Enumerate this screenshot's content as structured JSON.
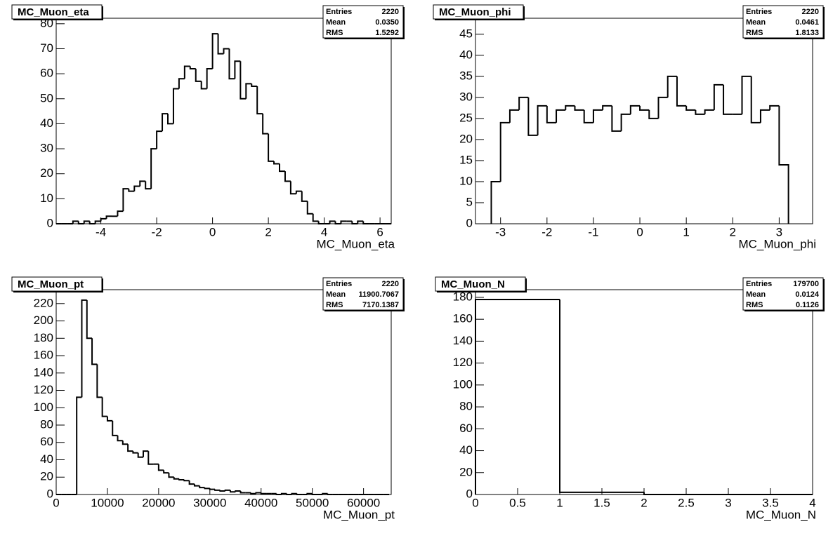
{
  "chart_data": [
    {
      "type": "histogram",
      "title": "MC_Muon_eta",
      "x_label": "MC_Muon_eta",
      "stats": [
        {
          "label": "Entries",
          "value": "2220"
        },
        {
          "label": "Mean",
          "value": "0.0350"
        },
        {
          "label": "RMS",
          "value": "1.5292"
        }
      ],
      "bins": [
        -5.6,
        -5.4,
        -5.2,
        -5.0,
        -4.8,
        -4.6,
        -4.4,
        -4.2,
        -4.0,
        -3.8,
        -3.6,
        -3.4,
        -3.2,
        -3.0,
        -2.8,
        -2.6,
        -2.4,
        -2.2,
        -2.0,
        -1.8,
        -1.6,
        -1.4,
        -1.2,
        -1.0,
        -0.8,
        -0.6,
        -0.4,
        -0.2,
        0.0,
        0.2,
        0.4,
        0.6,
        0.8,
        1.0,
        1.2,
        1.4,
        1.6,
        1.8,
        2.0,
        2.2,
        2.4,
        2.6,
        2.8,
        3.0,
        3.2,
        3.4,
        3.6,
        3.8,
        4.0,
        4.2,
        4.4,
        4.6,
        4.8,
        5.0,
        5.2,
        5.4,
        5.6,
        5.8,
        6.0,
        6.2,
        6.4
      ],
      "values": [
        0,
        0,
        0,
        1,
        0,
        1,
        0,
        1,
        2,
        3,
        3,
        5,
        14,
        13,
        15,
        17,
        14,
        30,
        37,
        44,
        40,
        54,
        58,
        63,
        62,
        57,
        54,
        62,
        76,
        68,
        70,
        58,
        65,
        50,
        56,
        55,
        44,
        36,
        25,
        24,
        21,
        17,
        12,
        13,
        9,
        4,
        1,
        0,
        0,
        1,
        0,
        1,
        1,
        0,
        1,
        0,
        0,
        0,
        0,
        0
      ],
      "color": "#000000",
      "xlim": [
        -5.6,
        6.4
      ],
      "ylim": [
        0,
        82.2
      ],
      "xticks": [
        -4,
        -2,
        0,
        2,
        4,
        6
      ],
      "yticks": [
        0,
        10,
        20,
        30,
        40,
        50,
        60,
        70,
        80
      ]
    },
    {
      "type": "histogram",
      "title": "MC_Muon_phi",
      "x_label": "MC_Muon_phi",
      "stats": [
        {
          "label": "Entries",
          "value": "2220"
        },
        {
          "label": "Mean",
          "value": "0.0461"
        },
        {
          "label": "RMS",
          "value": "1.8133"
        }
      ],
      "bins": [
        -3.2,
        -3.0,
        -2.8,
        -2.6,
        -2.4,
        -2.2,
        -2.0,
        -1.8,
        -1.6,
        -1.4,
        -1.2,
        -1.0,
        -0.8,
        -0.6,
        -0.4,
        -0.2,
        0.0,
        0.2,
        0.4,
        0.6,
        0.8,
        1.0,
        1.2,
        1.4,
        1.6,
        1.8,
        2.0,
        2.2,
        2.4,
        2.6,
        2.8,
        3.0,
        3.2
      ],
      "values": [
        10,
        24,
        27,
        30,
        21,
        28,
        24,
        27,
        28,
        27,
        24,
        27,
        28,
        22,
        26,
        28,
        27,
        25,
        30,
        35,
        28,
        27,
        26,
        27,
        33,
        26,
        26,
        35,
        24,
        27,
        28,
        14
      ],
      "color": "#000000",
      "xlim": [
        -3.54,
        3.72
      ],
      "ylim": [
        0,
        48.8
      ],
      "xticks": [
        -3,
        -2,
        -1,
        0,
        1,
        2,
        3
      ],
      "yticks": [
        0,
        5,
        10,
        15,
        20,
        25,
        30,
        35,
        40,
        45
      ]
    },
    {
      "type": "histogram",
      "title": "MC_Muon_pt",
      "x_label": "MC_Muon_pt",
      "stats": [
        {
          "label": "Entries",
          "value": "2220"
        },
        {
          "label": "Mean",
          "value": "11900.7067"
        },
        {
          "label": "RMS",
          "value": "7170.1387"
        }
      ],
      "bins": [
        0,
        1000,
        2000,
        3000,
        4000,
        5000,
        6000,
        7000,
        8000,
        9000,
        10000,
        11000,
        12000,
        13000,
        14000,
        15000,
        16000,
        17000,
        18000,
        19000,
        20000,
        21000,
        22000,
        23000,
        24000,
        25000,
        26000,
        27000,
        28000,
        29000,
        30000,
        31000,
        32000,
        33000,
        34000,
        35000,
        36000,
        37000,
        38000,
        39000,
        40000,
        41000,
        42000,
        43000,
        44000,
        45000,
        46000,
        47000,
        48000,
        49000,
        50000,
        51000,
        52000,
        53000,
        54000,
        55000,
        56000,
        57000,
        58000,
        59000,
        60000,
        61000,
        62000,
        63000,
        64000,
        65000
      ],
      "values": [
        0,
        0,
        0,
        0,
        112,
        224,
        180,
        150,
        112,
        90,
        85,
        68,
        62,
        58,
        50,
        48,
        43,
        50,
        35,
        35,
        28,
        25,
        20,
        18,
        17,
        16,
        12,
        10,
        8,
        7,
        6,
        5,
        4,
        5,
        3,
        4,
        2,
        2,
        1,
        2,
        1,
        1,
        1,
        0,
        1,
        0,
        1,
        0,
        0,
        1,
        0,
        0,
        1,
        0,
        0,
        0,
        0,
        0,
        0,
        0,
        0,
        0,
        0,
        0,
        0
      ],
      "color": "#000000",
      "xlim": [
        0,
        65400
      ],
      "ylim": [
        0,
        236
      ],
      "xticks": [
        0,
        10000,
        20000,
        30000,
        40000,
        50000,
        60000
      ],
      "yticks": [
        0,
        20,
        40,
        60,
        80,
        100,
        120,
        140,
        160,
        180,
        200,
        220
      ]
    },
    {
      "type": "histogram",
      "title": "MC_Muon_N",
      "x_label": "MC_Muon_N",
      "stats": [
        {
          "label": "Entries",
          "value": "179700"
        },
        {
          "label": "Mean",
          "value": "0.0124"
        },
        {
          "label": "RMS",
          "value": "0.1126"
        }
      ],
      "bins": [
        0,
        1,
        2,
        3,
        4
      ],
      "values": [
        178,
        2,
        0,
        0
      ],
      "color": "#000000",
      "xlim": [
        0,
        4
      ],
      "ylim": [
        0,
        187
      ],
      "xticks": [
        0,
        0.5,
        1,
        1.5,
        2,
        2.5,
        3,
        3.5,
        4
      ],
      "yticks": [
        0,
        20,
        40,
        60,
        80,
        100,
        120,
        140,
        160,
        180
      ]
    }
  ]
}
